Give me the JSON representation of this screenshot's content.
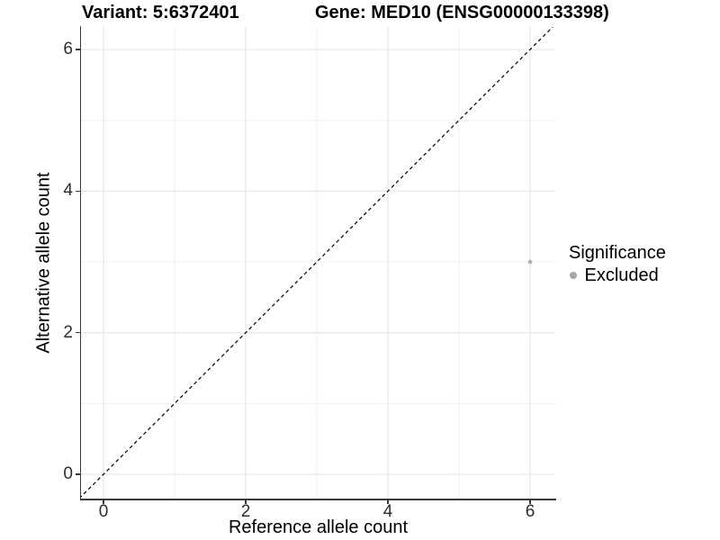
{
  "chart_data": {
    "type": "scatter",
    "title_left": "Variant: 5:6372401",
    "title_right": "Gene: MED10 (ENSG00000133398)",
    "xlabel": "Reference allele count",
    "ylabel": "Alternative allele count",
    "xlim": [
      -0.3,
      6.35
    ],
    "ylim": [
      -0.35,
      6.32
    ],
    "x_ticks": [
      0,
      2,
      4,
      6
    ],
    "y_ticks": [
      0,
      2,
      4,
      6
    ],
    "grid_minor": [
      1,
      3,
      5
    ],
    "grid": "major+minor",
    "background": "#ffffff",
    "grid_major_color": "#e4e4e4",
    "grid_minor_color": "#f0f0f0",
    "points": [
      {
        "x": 6,
        "y": 3,
        "significance": "Excluded",
        "color": "#b4b4b4"
      }
    ],
    "reference_line": {
      "slope": 1,
      "intercept": 0,
      "style": "dashed",
      "color": "#000000"
    },
    "legend": {
      "title": "Significance",
      "position": "right",
      "entries": [
        {
          "label": "Excluded",
          "color": "#a6a6a6",
          "marker": "circle"
        }
      ]
    }
  }
}
